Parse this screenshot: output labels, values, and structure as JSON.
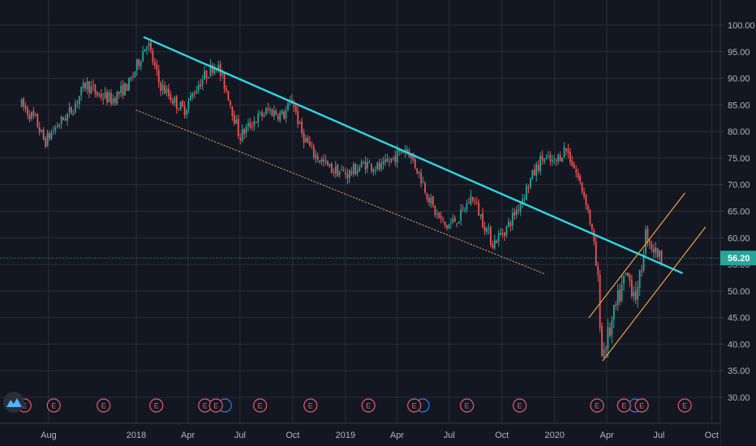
{
  "chart_data": {
    "type": "candlestick",
    "title": "",
    "xlabel": "",
    "ylabel": "",
    "ylim": [
      26,
      103
    ],
    "grid": true,
    "colors": {
      "background": "#131722",
      "grid": "#2a2e39",
      "up": "#26a69a",
      "down": "#ef5350",
      "trend_main": "#2dd9e4",
      "trend_support": "#e8a04b",
      "channel": "#f0a23a",
      "earnings": "#e35d6a",
      "price_line": "#26a69a",
      "axis_text": "#b2b5be",
      "dividend": "#2f7cf6"
    },
    "x_ticks": [
      "Aug",
      "2018",
      "Apr",
      "Jul",
      "Oct",
      "2019",
      "Apr",
      "Jul",
      "Oct",
      "2020",
      "Apr",
      "Jul",
      "Oct"
    ],
    "y_ticks": [
      "100.00",
      "95.00",
      "90.00",
      "85.00",
      "80.00",
      "75.00",
      "70.00",
      "65.00",
      "60.00",
      "55.00",
      "50.00",
      "45.00",
      "40.00",
      "35.00",
      "30.00"
    ],
    "last_price": {
      "label": "56.20",
      "value": 56.2
    },
    "price_path": [
      [
        "2017-06-15",
        85
      ],
      [
        "2017-07-10",
        82
      ],
      [
        "2017-07-25",
        78
      ],
      [
        "2017-08-15",
        81
      ],
      [
        "2017-09-10",
        84
      ],
      [
        "2017-10-05",
        89
      ],
      [
        "2017-10-25",
        87
      ],
      [
        "2017-11-20",
        86
      ],
      [
        "2017-12-20",
        89
      ],
      [
        "2018-01-20",
        97
      ],
      [
        "2018-02-10",
        89
      ],
      [
        "2018-03-05",
        86
      ],
      [
        "2018-03-25",
        84
      ],
      [
        "2018-04-20",
        89
      ],
      [
        "2018-05-20",
        93
      ],
      [
        "2018-06-10",
        87
      ],
      [
        "2018-06-30",
        79
      ],
      [
        "2018-07-25",
        82
      ],
      [
        "2018-08-20",
        84
      ],
      [
        "2018-09-15",
        83
      ],
      [
        "2018-10-01",
        86
      ],
      [
        "2018-10-15",
        80
      ],
      [
        "2018-11-05",
        76
      ],
      [
        "2018-12-05",
        73
      ],
      [
        "2019-01-05",
        72
      ],
      [
        "2019-02-05",
        74
      ],
      [
        "2019-03-05",
        73
      ],
      [
        "2019-03-25",
        75
      ],
      [
        "2019-04-18",
        77
      ],
      [
        "2019-05-10",
        72
      ],
      [
        "2019-06-05",
        65
      ],
      [
        "2019-06-25",
        62
      ],
      [
        "2019-07-20",
        64
      ],
      [
        "2019-08-10",
        68
      ],
      [
        "2019-08-25",
        64
      ],
      [
        "2019-09-15",
        59
      ],
      [
        "2019-10-10",
        62
      ],
      [
        "2019-10-30",
        66
      ],
      [
        "2019-11-20",
        71
      ],
      [
        "2019-12-10",
        75
      ],
      [
        "2020-01-01",
        74
      ],
      [
        "2020-01-20",
        77
      ],
      [
        "2020-02-05",
        73
      ],
      [
        "2020-02-25",
        67
      ],
      [
        "2020-03-08",
        60
      ],
      [
        "2020-03-18",
        50
      ],
      [
        "2020-03-23",
        38
      ],
      [
        "2020-04-05",
        42
      ],
      [
        "2020-04-20",
        48
      ],
      [
        "2020-05-05",
        53
      ],
      [
        "2020-05-25",
        49
      ],
      [
        "2020-06-08",
        61
      ],
      [
        "2020-06-20",
        58
      ],
      [
        "2020-07-06",
        56.2
      ]
    ],
    "trend_lines": [
      {
        "role": "main-resistance",
        "from": [
          "2018-01-15",
          97.7
        ],
        "to": [
          "2020-08-10",
          53.4
        ],
        "style": "solid"
      },
      {
        "role": "lower-support",
        "from": [
          "2018-01-01",
          84.0
        ],
        "to": [
          "2019-12-15",
          53.2
        ],
        "style": "dotted"
      },
      {
        "role": "channel-upper",
        "from": [
          "2020-03-01",
          45.0
        ],
        "to": [
          "2020-08-15",
          68.4
        ],
        "style": "solid"
      },
      {
        "role": "channel-lower",
        "from": [
          "2020-03-25",
          36.9
        ],
        "to": [
          "2020-09-20",
          62.0
        ],
        "style": "solid"
      }
    ],
    "earnings_marker_label": "E",
    "earnings_dates": [
      "2017-06-20",
      "2017-08-10",
      "2017-11-05",
      "2018-02-05",
      "2018-05-01",
      "2018-05-20",
      "2018-08-05",
      "2018-11-01",
      "2019-02-10",
      "2019-05-01",
      "2019-08-01",
      "2019-11-01",
      "2020-03-15",
      "2020-05-01",
      "2020-06-01",
      "2020-08-15"
    ],
    "dividend_dates": [
      "2018-05-30",
      "2019-05-10",
      "2020-05-15"
    ]
  }
}
